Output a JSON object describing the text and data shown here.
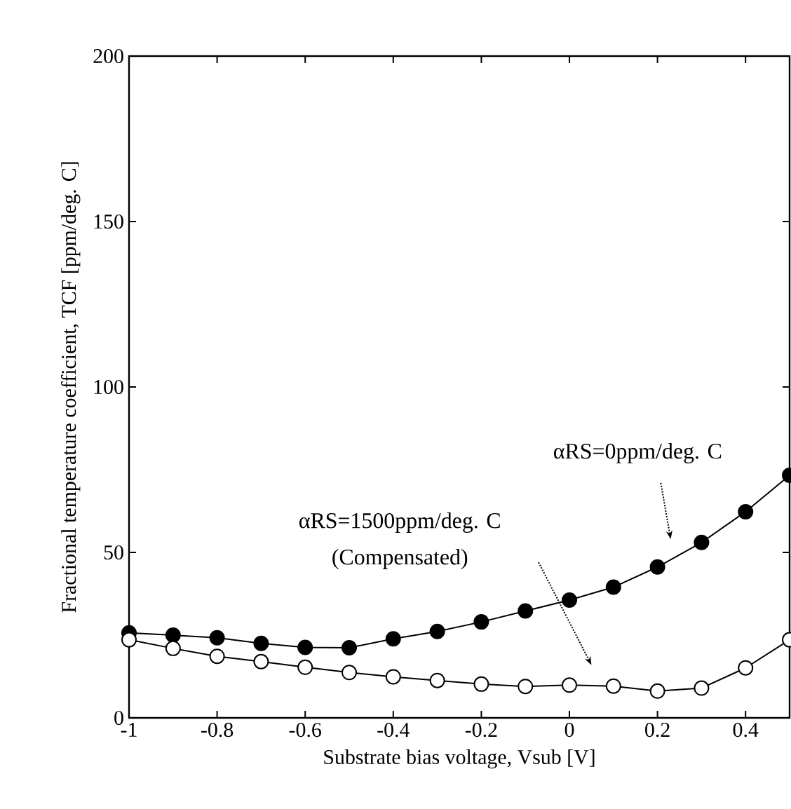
{
  "chart_data": {
    "type": "line",
    "xlabel": "Substrate bias voltage, Vsub [V]",
    "ylabel": "Fractional temperature coefficient, TCF [ppm/deg. C]",
    "x": [
      -1,
      -0.9,
      -0.8,
      -0.7,
      -0.6,
      -0.5,
      -0.4,
      -0.3,
      -0.2,
      -0.1,
      0,
      0.1,
      0.2,
      0.3,
      0.4,
      0.5
    ],
    "series": [
      {
        "color": "#000000",
        "values": [
          25.7,
          25,
          24.2,
          22.5,
          21.3,
          21.2,
          23.9,
          26.1,
          29,
          32.3,
          35.6,
          39.5,
          45.6,
          53,
          62.3,
          73.3
        ]
      },
      {
        "color": "#ffffff",
        "values": [
          23.6,
          21,
          18.6,
          17,
          15.3,
          13.7,
          12.4,
          11.3,
          10.2,
          9.5,
          9.9,
          9.6,
          8.1,
          9,
          15.1,
          23.6
        ]
      }
    ],
    "marker": "circle",
    "xlim": [
      -1,
      0.5
    ],
    "ylim": [
      0,
      200
    ],
    "xticks": [
      -1,
      -0.8,
      -0.6,
      -0.4,
      -0.2,
      0,
      0.2,
      0.4
    ],
    "yticks": [
      0,
      50,
      100,
      150,
      200
    ],
    "annotations": [
      "αRS=0ppm/deg. C",
      "αRS=1500ppm/deg. C",
      "(Compensated)"
    ]
  }
}
